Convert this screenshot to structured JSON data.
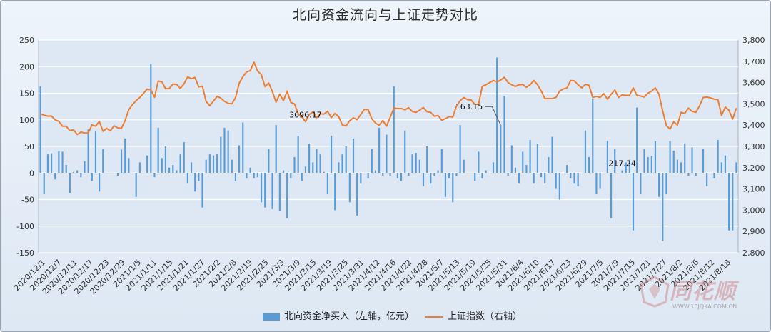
{
  "title": "北向资金流向与上证走势对比",
  "legend": {
    "bar_label": "北向资金净买入（左轴，亿元）",
    "line_label": "上证指数（右轴）"
  },
  "watermark": {
    "brand": "同花顺",
    "url": "WWW.10JQKA.COM.CN"
  },
  "colors": {
    "bar": "#5b9bd5",
    "line": "#ed7d31",
    "plot_bg": "#dde8f4"
  },
  "chart_data": {
    "type": "bar",
    "grid": true,
    "legend_position": "bottom",
    "left_axis": {
      "min": -150,
      "max": 250,
      "ticks": [
        -150,
        -100,
        -50,
        0,
        50,
        100,
        150,
        200,
        250
      ]
    },
    "right_axis": {
      "min": 2800,
      "max": 3800,
      "ticks": [
        2800,
        2900,
        3000,
        3100,
        3200,
        3300,
        3400,
        3500,
        3600,
        3700,
        3800
      ],
      "tick_labels": [
        "2,800",
        "2,900",
        "3,000",
        "3,100",
        "3,200",
        "3,300",
        "3,400",
        "3,500",
        "3,600",
        "3,700",
        "3,800"
      ]
    },
    "x_tick_labels": [
      "2020/12/1",
      "2020/12/7",
      "2020/12/11",
      "2020/12/17",
      "2020/12/23",
      "2020/12/29",
      "2021/1/5",
      "2021/1/11",
      "2021/1/15",
      "2021/1/21",
      "2021/1/27",
      "2021/2/2",
      "2021/2/8",
      "2021/2/19",
      "2021/2/25",
      "2021/3/3",
      "2021/3/9",
      "2021/3/15",
      "2021/3/19",
      "2021/3/25",
      "2021/3/31",
      "2021/4/12",
      "2021/4/16",
      "2021/4/22",
      "2021/4/28",
      "2021/5/7",
      "2021/5/13",
      "2021/5/19",
      "2021/5/25",
      "2021/5/31",
      "2021/6/4",
      "2021/6/10",
      "2021/6/17",
      "2021/6/23",
      "2021/6/29",
      "2021/7/5",
      "2021/7/9",
      "2021/7/15",
      "2021/7/21",
      "2021/7/27",
      "2021/8/2",
      "2021/8/6",
      "2021/8/12",
      "2021/8/18"
    ],
    "annotations": [
      {
        "label": "3696.17",
        "series": "上证指数（右轴）",
        "index": 72
      },
      {
        "label": "163.15",
        "series": "北向资金净买入（左轴，亿元）",
        "index": 125
      },
      {
        "label": "217.24",
        "series": "北向资金净买入（左轴，亿元）",
        "index": 158
      }
    ],
    "series": [
      {
        "name": "北向资金净买入（左轴，亿元）",
        "type": "bar",
        "axis": "left",
        "values": [
          163,
          -40,
          35,
          37,
          -12,
          41,
          40,
          15,
          -38,
          2,
          5,
          -8,
          22,
          82,
          -15,
          78,
          -35,
          45,
          0,
          0,
          0,
          -5,
          44,
          65,
          28,
          0,
          -45,
          20,
          0,
          33,
          205,
          -8,
          85,
          28,
          50,
          10,
          15,
          5,
          35,
          58,
          -20,
          20,
          -35,
          -15,
          -65,
          25,
          35,
          33,
          35,
          68,
          85,
          80,
          25,
          -15,
          52,
          95,
          -10,
          10,
          -10,
          -8,
          -55,
          -65,
          45,
          -68,
          90,
          -72,
          5,
          -85,
          -10,
          30,
          70,
          -15,
          12,
          55,
          20,
          45,
          35,
          2,
          -40,
          70,
          -70,
          20,
          35,
          50,
          -55,
          65,
          -80,
          -20,
          0,
          -10,
          45,
          5,
          85,
          -5,
          72,
          -5,
          163,
          -10,
          -15,
          80,
          -5,
          35,
          38,
          25,
          -25,
          50,
          -20,
          -5,
          5,
          45,
          -45,
          -10,
          -55,
          -5,
          90,
          25,
          0,
          0,
          -15,
          40,
          -10,
          5,
          0,
          20,
          217,
          90,
          145,
          -5,
          52,
          10,
          -20,
          40,
          15,
          62,
          -20,
          55,
          -8,
          -20,
          30,
          68,
          -30,
          -50,
          0,
          15,
          -10,
          -20,
          -25,
          0,
          80,
          30,
          140,
          -40,
          -30,
          0,
          60,
          -85,
          45,
          0,
          5,
          20,
          25,
          -108,
          123,
          -40,
          45,
          30,
          32,
          60,
          -45,
          -128,
          -40,
          60,
          42,
          25,
          20,
          55,
          -5,
          48,
          -5,
          0,
          45,
          -25,
          0,
          -10,
          62,
          20,
          33,
          -108,
          -108,
          20
        ]
      },
      {
        "name": "上证指数（右轴）",
        "type": "line",
        "axis": "right",
        "values": [
          3452,
          3447,
          3442,
          3443,
          3425,
          3418,
          3395,
          3395,
          3374,
          3378,
          3356,
          3367,
          3363,
          3363,
          3401,
          3395,
          3418,
          3371,
          3385,
          3373,
          3397,
          3387,
          3385,
          3422,
          3473,
          3496,
          3515,
          3530,
          3549,
          3570,
          3566,
          3531,
          3607,
          3604,
          3571,
          3572,
          3593,
          3592,
          3573,
          3594,
          3627,
          3618,
          3624,
          3580,
          3583,
          3512,
          3491,
          3513,
          3535,
          3527,
          3512,
          3502,
          3500,
          3530,
          3597,
          3628,
          3650,
          3656,
          3696,
          3654,
          3637,
          3581,
          3598,
          3558,
          3508,
          3546,
          3515,
          3560,
          3507,
          3500,
          3454,
          3440,
          3416,
          3450,
          3462,
          3435,
          3453,
          3452,
          3465,
          3435,
          3455,
          3440,
          3401,
          3396,
          3421,
          3434,
          3426,
          3450,
          3475,
          3473,
          3430,
          3410,
          3400,
          3422,
          3395,
          3437,
          3480,
          3478,
          3478,
          3472,
          3482,
          3464,
          3460,
          3470,
          3483,
          3463,
          3460,
          3442,
          3445,
          3423,
          3430,
          3440,
          3438,
          3490,
          3515,
          3530,
          3520,
          3518,
          3498,
          3498,
          3582,
          3590,
          3600,
          3610,
          3603,
          3612,
          3625,
          3600,
          3590,
          3582,
          3590,
          3591,
          3578,
          3590,
          3610,
          3590,
          3561,
          3525,
          3525,
          3525,
          3530,
          3560,
          3570,
          3575,
          3610,
          3608,
          3590,
          3575,
          3591,
          3588,
          3530,
          3535,
          3530,
          3548,
          3522,
          3545,
          3565,
          3530,
          3542,
          3540,
          3540,
          3575,
          3540,
          3537,
          3532,
          3550,
          3560,
          3575,
          3545,
          3467,
          3398,
          3381,
          3416,
          3400,
          3460,
          3455,
          3480,
          3465,
          3460,
          3490,
          3530,
          3532,
          3528,
          3522,
          3520,
          3445,
          3485,
          3470,
          3428,
          3480
        ]
      }
    ]
  }
}
